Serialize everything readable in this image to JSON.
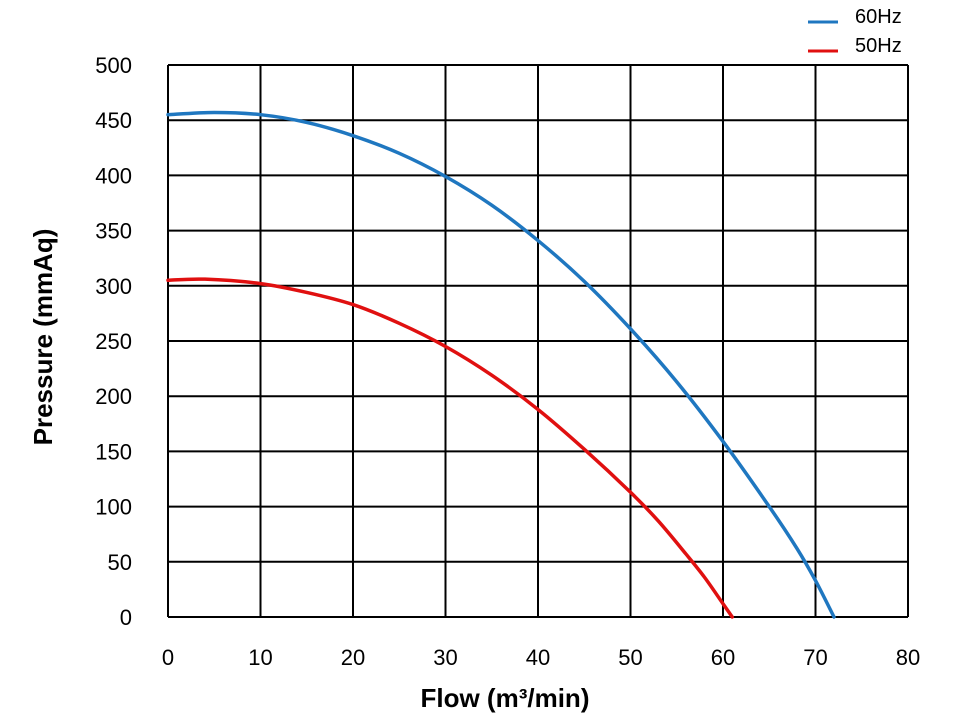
{
  "chart_data": {
    "type": "line",
    "xlabel": "Flow (m³/min)",
    "ylabel": "Pressure (mmAq)",
    "xlim": [
      0,
      80
    ],
    "ylim": [
      0,
      500
    ],
    "x_ticks": [
      "0",
      "10",
      "20",
      "30",
      "40",
      "50",
      "60",
      "70",
      "80"
    ],
    "y_ticks": [
      "0",
      "50",
      "100",
      "150",
      "200",
      "250",
      "300",
      "350",
      "400",
      "450",
      "500"
    ],
    "grid": true,
    "legend_position": "top-right",
    "series": [
      {
        "name": "60Hz",
        "color": "#1f77c0",
        "points": [
          [
            0,
            455
          ],
          [
            5,
            457
          ],
          [
            10,
            455
          ],
          [
            15,
            448
          ],
          [
            20,
            436
          ],
          [
            25,
            420
          ],
          [
            30,
            399
          ],
          [
            35,
            373
          ],
          [
            40,
            341
          ],
          [
            45,
            304
          ],
          [
            50,
            261
          ],
          [
            55,
            213
          ],
          [
            60,
            159
          ],
          [
            65,
            100
          ],
          [
            68,
            62
          ],
          [
            70,
            33
          ],
          [
            72,
            0
          ]
        ]
      },
      {
        "name": "50Hz",
        "color": "#e01010",
        "points": [
          [
            0,
            305
          ],
          [
            4,
            306
          ],
          [
            10,
            302
          ],
          [
            15,
            294
          ],
          [
            20,
            283
          ],
          [
            25,
            266
          ],
          [
            30,
            245
          ],
          [
            35,
            219
          ],
          [
            40,
            188
          ],
          [
            45,
            152
          ],
          [
            50,
            113
          ],
          [
            53,
            87
          ],
          [
            56,
            57
          ],
          [
            58,
            36
          ],
          [
            60,
            12
          ],
          [
            61,
            0
          ]
        ]
      }
    ]
  }
}
